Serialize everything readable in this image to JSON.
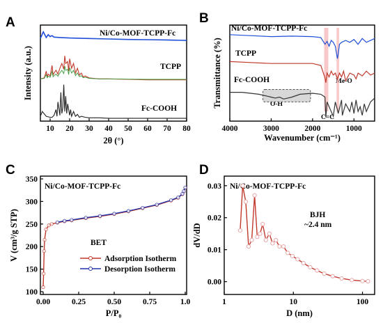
{
  "panels": {
    "A": "A",
    "B": "B",
    "C": "C",
    "D": "D"
  },
  "chart_data": [
    {
      "id": "A",
      "type": "line",
      "title": "",
      "xlabel": "2θ (°)",
      "ylabel": "Intensity (a.u.)",
      "xlim": [
        5,
        80
      ],
      "xticks": [
        10,
        20,
        30,
        40,
        50,
        60,
        70,
        80
      ],
      "yticks": false,
      "series_labels": [
        "Ni/Co-MOF-TCPP-Fc",
        "TCPP",
        "Fc-COOH"
      ],
      "colors": {
        "mof": "#1f4fd8",
        "tcpp": "#c0392b",
        "tcpp_fit": "#3a9a3a",
        "fc": "#222222"
      },
      "series": [
        {
          "name": "Ni/Co-MOF-TCPP-Fc",
          "x": [
            5,
            6.5,
            8,
            9,
            10,
            11,
            12,
            15,
            20,
            30,
            40,
            50,
            60,
            70,
            80
          ],
          "y": [
            0.86,
            0.93,
            0.87,
            0.9,
            0.88,
            0.89,
            0.875,
            0.87,
            0.865,
            0.86,
            0.855,
            0.85,
            0.848,
            0.845,
            0.84
          ]
        },
        {
          "name": "TCPP",
          "x": [
            5,
            7,
            8,
            8.5,
            9,
            10,
            11,
            11.5,
            12,
            13,
            14,
            15,
            16,
            17,
            17.5,
            18,
            19,
            19.5,
            20,
            21,
            22,
            23,
            24,
            25,
            26,
            27,
            28,
            30,
            35,
            40,
            50,
            60,
            70,
            80
          ],
          "y": [
            0.44,
            0.45,
            0.52,
            0.46,
            0.49,
            0.47,
            0.58,
            0.48,
            0.5,
            0.53,
            0.49,
            0.55,
            0.6,
            0.54,
            0.68,
            0.6,
            0.62,
            0.52,
            0.65,
            0.55,
            0.6,
            0.5,
            0.55,
            0.48,
            0.5,
            0.46,
            0.47,
            0.45,
            0.44,
            0.44,
            0.435,
            0.43,
            0.43,
            0.43
          ]
        },
        {
          "name": "Fc-COOH",
          "x": [
            5,
            6,
            8,
            10,
            11,
            12,
            13,
            13.5,
            14,
            15,
            15.5,
            16,
            16.5,
            17,
            17.5,
            18,
            18.5,
            19,
            20,
            20.5,
            21,
            22,
            23,
            24,
            25,
            26,
            28,
            30,
            35,
            40,
            50,
            60,
            70,
            80
          ],
          "y": [
            0.05,
            0.1,
            0.05,
            0.04,
            0.04,
            0.06,
            0.12,
            0.05,
            0.2,
            0.06,
            0.3,
            0.08,
            0.14,
            0.38,
            0.1,
            0.26,
            0.08,
            0.18,
            0.06,
            0.12,
            0.05,
            0.1,
            0.05,
            0.07,
            0.04,
            0.05,
            0.04,
            0.035,
            0.035,
            0.03,
            0.03,
            0.03,
            0.03,
            0.03
          ]
        }
      ]
    },
    {
      "id": "B",
      "type": "line",
      "title": "",
      "xlabel": "Wavenumber (cm⁻¹)",
      "ylabel": "Transmittance (%)",
      "xlim": [
        4000,
        500
      ],
      "xticks": [
        4000,
        3000,
        2000,
        1000
      ],
      "yticks": false,
      "series_labels": [
        "Ni/Co-MOF-TCPP-Fc",
        "TCPP",
        "Fc-COOH"
      ],
      "annotations": [
        "O-H",
        "C=C",
        "Me-O"
      ],
      "highlight_bands": [
        [
          1720,
          1620
        ],
        [
          1420,
          1360
        ]
      ],
      "colors": {
        "mof": "#1f4fd8",
        "tcpp": "#c0392b",
        "fc": "#333333",
        "highlight": "#f7b6b6"
      },
      "series": [
        {
          "name": "Ni/Co-MOF-TCPP-Fc",
          "x": [
            4000,
            3500,
            3000,
            2500,
            2000,
            1800,
            1700,
            1650,
            1600,
            1550,
            1500,
            1450,
            1400,
            1380,
            1350,
            1300,
            1200,
            1100,
            1000,
            900,
            800,
            700,
            600,
            500
          ],
          "y": [
            0.9,
            0.89,
            0.88,
            0.885,
            0.88,
            0.87,
            0.8,
            0.83,
            0.78,
            0.84,
            0.82,
            0.78,
            0.65,
            0.7,
            0.8,
            0.82,
            0.84,
            0.82,
            0.85,
            0.8,
            0.86,
            0.82,
            0.84,
            0.86
          ]
        },
        {
          "name": "TCPP",
          "x": [
            4000,
            3500,
            3000,
            2500,
            2000,
            1800,
            1700,
            1680,
            1650,
            1600,
            1550,
            1500,
            1450,
            1400,
            1350,
            1300,
            1250,
            1200,
            1100,
            1000,
            950,
            900,
            800,
            700,
            600,
            500
          ],
          "y": [
            0.62,
            0.61,
            0.6,
            0.6,
            0.6,
            0.58,
            0.45,
            0.4,
            0.5,
            0.46,
            0.52,
            0.48,
            0.5,
            0.44,
            0.5,
            0.46,
            0.52,
            0.42,
            0.5,
            0.48,
            0.44,
            0.5,
            0.47,
            0.52,
            0.48,
            0.5
          ]
        },
        {
          "name": "Fc-COOH",
          "x": [
            4000,
            3700,
            3500,
            3300,
            3100,
            3000,
            2900,
            2800,
            2700,
            2600,
            2500,
            2300,
            2000,
            1800,
            1700,
            1680,
            1650,
            1600,
            1500,
            1450,
            1400,
            1380,
            1300,
            1280,
            1200,
            1100,
            1050,
            1000,
            950,
            900,
            850,
            800,
            750,
            700,
            600,
            500
          ],
          "y": [
            0.3,
            0.3,
            0.29,
            0.28,
            0.26,
            0.25,
            0.24,
            0.25,
            0.23,
            0.24,
            0.25,
            0.28,
            0.29,
            0.28,
            0.25,
            0.04,
            0.2,
            0.15,
            0.05,
            0.2,
            0.12,
            0.08,
            0.22,
            0.06,
            0.18,
            0.1,
            0.2,
            0.08,
            0.22,
            0.1,
            0.15,
            0.06,
            0.18,
            0.1,
            0.2,
            0.24
          ]
        }
      ]
    },
    {
      "id": "C",
      "type": "line",
      "title": "",
      "xlabel": "P/P₀",
      "ylabel": "V (cm³/g STP)",
      "xlim": [
        0,
        1
      ],
      "ylim": [
        100,
        350
      ],
      "xticks": [
        0.0,
        0.25,
        0.5,
        0.75,
        1.0
      ],
      "xticklabels": [
        "0.00",
        "0.25",
        "0.50",
        "0.75",
        "1.0"
      ],
      "yticks": [
        100,
        150,
        200,
        250,
        300,
        350
      ],
      "sample_label": "Ni/Co-MOF-TCPP-Fc",
      "method_label": "BET",
      "legend_position": "lower-center",
      "colors": {
        "adsorption": "#c0392b",
        "desorption": "#2233aa"
      },
      "series": [
        {
          "name": "Adsorption Isotherm",
          "x": [
            0.0,
            0.003,
            0.007,
            0.01,
            0.02,
            0.04,
            0.06,
            0.1,
            0.15,
            0.2,
            0.3,
            0.4,
            0.5,
            0.6,
            0.7,
            0.8,
            0.9,
            0.95,
            0.98,
            0.99,
            1.0
          ],
          "y": [
            110,
            140,
            190,
            215,
            238,
            247,
            250,
            253,
            256,
            258,
            263,
            267,
            272,
            278,
            285,
            292,
            302,
            308,
            316,
            322,
            330
          ]
        },
        {
          "name": "Desorption Isotherm",
          "x": [
            1.0,
            0.99,
            0.98,
            0.95,
            0.9,
            0.8,
            0.7,
            0.6,
            0.5,
            0.4,
            0.3,
            0.2,
            0.15,
            0.1
          ],
          "y": [
            331,
            323,
            317,
            309,
            303,
            293,
            286,
            279,
            273,
            268,
            264,
            259,
            257,
            254
          ]
        }
      ]
    },
    {
      "id": "D",
      "type": "line",
      "title": "",
      "xlabel": "D (nm)",
      "ylabel": "dV/dD",
      "xscale": "log",
      "xlim": [
        1,
        150
      ],
      "ylim": [
        -0.004,
        0.033
      ],
      "xticks": [
        1,
        10,
        100
      ],
      "yticks": [
        0.0,
        0.01,
        0.02,
        0.03
      ],
      "yticklabels": [
        "0.00",
        "0.01",
        "0.02",
        "0.03"
      ],
      "sample_label": "Ni/Co-MOF-TCPP-Fc",
      "annotation": [
        "BJH",
        "~2.4 nm"
      ],
      "colors": {
        "line": "#c0392b",
        "marker_fill": "#ffffff",
        "marker_edge": "#e8a8a8"
      },
      "series": [
        {
          "name": "",
          "x": [
            1.7,
            1.85,
            2.05,
            2.25,
            2.5,
            2.75,
            3.0,
            3.3,
            3.6,
            4.0,
            4.5,
            5.0,
            5.6,
            6.3,
            7.2,
            8.3,
            9.7,
            11.5,
            14,
            17.5,
            22,
            28,
            37,
            50,
            70,
            100,
            120
          ],
          "y": [
            0.016,
            0.03,
            0.025,
            0.011,
            0.013,
            0.027,
            0.014,
            0.015,
            0.018,
            0.013,
            0.015,
            0.012,
            0.013,
            0.011,
            0.011,
            0.009,
            0.008,
            0.007,
            0.0058,
            0.0045,
            0.0035,
            0.0025,
            0.0017,
            0.001,
            0.0005,
            0.0002,
            0.0001
          ]
        }
      ]
    }
  ]
}
